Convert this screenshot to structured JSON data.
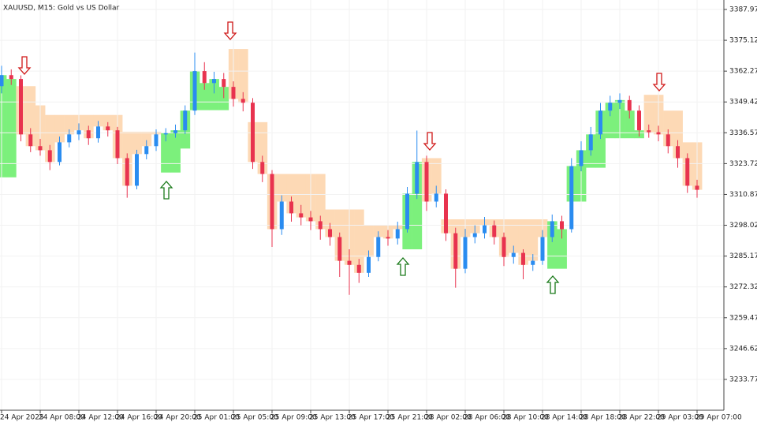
{
  "chart_data": {
    "type": "candlestick",
    "title": "XAUUSD, M15:  Gold vs US Dollar",
    "categories": [
      "24 Apr 2025",
      null,
      null,
      null,
      "24 Apr 08:00",
      null,
      null,
      null,
      "24 Apr 12:00",
      null,
      null,
      null,
      "24 Apr 16:00",
      null,
      null,
      null,
      "24 Apr 20:00",
      null,
      null,
      null,
      "25 Apr 01:00",
      null,
      null,
      null,
      "25 Apr 05:00",
      null,
      null,
      null,
      "25 Apr 09:00",
      null,
      null,
      null,
      "25 Apr 13:00",
      null,
      null,
      null,
      "25 Apr 17:00",
      null,
      null,
      null,
      "25 Apr 21:00",
      null,
      null,
      null,
      "28 Apr 02:00",
      null,
      null,
      null,
      "28 Apr 06:00",
      null,
      null,
      null,
      "28 Apr 10:00",
      null,
      null,
      null,
      "28 Apr 14:00",
      null,
      null,
      null,
      "28 Apr 18:00",
      null,
      null,
      null,
      "28 Apr 22:00",
      null,
      null,
      null,
      "29 Apr 03:00",
      null,
      null,
      null,
      "29 Apr 07:00"
    ],
    "open": [
      3356.0,
      3360.6,
      3359.0,
      3335.9,
      3331.0,
      3329.3,
      3324.4,
      3332.6,
      3335.9,
      3337.6,
      3334.3,
      3339.2,
      3337.6,
      3326.0,
      3314.5,
      3327.7,
      3331.0,
      3335.9,
      3336.4,
      3337.6,
      3345.8,
      3362.3,
      3357.3,
      3359.0,
      3355.7,
      3350.7,
      3349.1,
      3324.4,
      3319.4,
      3296.4,
      3307.9,
      3303.0,
      3301.3,
      3299.7,
      3296.4,
      3293.1,
      3283.2,
      3281.5,
      3278.2,
      3284.8,
      3293.1,
      3292.5,
      3296.4,
      3311.2,
      3324.4,
      3307.9,
      3311.2,
      3294.7,
      3279.9,
      3293.1,
      3294.7,
      3298.0,
      3293.1,
      3284.8,
      3286.5,
      3281.5,
      3283.2,
      3293.1,
      3299.7,
      3296.4,
      3322.7,
      3329.3,
      3335.9,
      3345.8,
      3349.1,
      3350.2,
      3345.8,
      3337.6,
      3336.8,
      3335.9,
      3331.0,
      3326.0,
      3314.5
    ],
    "high": [
      3364.5,
      3363.0,
      3360.5,
      3338.5,
      3334.0,
      3331.5,
      3335.0,
      3338.0,
      3340.5,
      3339.5,
      3341.5,
      3341.0,
      3339.0,
      3328.0,
      3329.5,
      3333.5,
      3338.0,
      3338.5,
      3340.0,
      3348.0,
      3370.0,
      3366.0,
      3362.0,
      3361.5,
      3358.0,
      3353.5,
      3351.0,
      3327.0,
      3321.0,
      3310.5,
      3310.0,
      3306.5,
      3304.0,
      3302.0,
      3299.0,
      3295.0,
      3288.0,
      3284.0,
      3287.5,
      3295.5,
      3296.0,
      3299.5,
      3314.0,
      3337.5,
      3327.0,
      3314.5,
      3313.0,
      3297.0,
      3296.5,
      3298.0,
      3301.5,
      3300.0,
      3295.0,
      3289.5,
      3288.0,
      3286.0,
      3296.0,
      3302.5,
      3302.0,
      3326.0,
      3333.0,
      3339.0,
      3349.0,
      3352.0,
      3353.0,
      3352.0,
      3348.0,
      3340.0,
      3339.5,
      3338.0,
      3333.5,
      3328.0,
      3317.0
    ],
    "low": [
      3353.0,
      3356.5,
      3333.0,
      3328.5,
      3327.0,
      3321.0,
      3323.0,
      3330.5,
      3333.5,
      3331.5,
      3332.5,
      3335.0,
      3323.5,
      3309.5,
      3313.0,
      3325.5,
      3329.0,
      3333.0,
      3334.5,
      3336.0,
      3344.0,
      3354.5,
      3353.0,
      3351.0,
      3347.5,
      3345.5,
      3321.5,
      3316.0,
      3289.0,
      3294.0,
      3299.5,
      3298.0,
      3296.0,
      3292.0,
      3289.5,
      3276.5,
      3269.0,
      3274.0,
      3276.5,
      3283.0,
      3289.5,
      3290.0,
      3295.0,
      3309.0,
      3304.0,
      3305.5,
      3291.5,
      3272.0,
      3278.0,
      3290.5,
      3292.5,
      3290.0,
      3281.0,
      3282.0,
      3275.5,
      3279.0,
      3281.5,
      3291.0,
      3292.5,
      3295.0,
      3320.5,
      3327.0,
      3334.0,
      3343.5,
      3346.5,
      3342.5,
      3335.0,
      3334.5,
      3333.0,
      3328.0,
      3322.0,
      3311.5,
      3309.5
    ],
    "close": [
      3360.6,
      3359.0,
      3335.9,
      3331.0,
      3329.3,
      3324.4,
      3332.6,
      3335.9,
      3337.6,
      3334.3,
      3339.2,
      3337.6,
      3326.0,
      3314.5,
      3327.7,
      3331.0,
      3335.9,
      3336.4,
      3337.6,
      3345.8,
      3362.3,
      3357.3,
      3359.0,
      3355.7,
      3350.7,
      3349.1,
      3324.4,
      3319.4,
      3296.4,
      3307.9,
      3303.0,
      3301.3,
      3299.7,
      3296.4,
      3293.1,
      3283.2,
      3281.5,
      3278.2,
      3284.8,
      3293.1,
      3292.5,
      3296.4,
      3311.2,
      3324.4,
      3307.9,
      3311.2,
      3294.7,
      3279.9,
      3293.1,
      3294.7,
      3298.0,
      3293.1,
      3284.8,
      3286.5,
      3281.5,
      3283.2,
      3293.1,
      3299.7,
      3296.4,
      3322.7,
      3329.3,
      3335.9,
      3345.8,
      3349.1,
      3350.2,
      3345.8,
      3337.6,
      3336.8,
      3335.9,
      3331.0,
      3326.0,
      3314.5,
      3312.8
    ],
    "trail": [
      3318.0,
      3318.0,
      3356.0,
      3356.0,
      3348.0,
      3344.0,
      3344.0,
      3344.0,
      3344.0,
      3344.0,
      3344.0,
      3344.0,
      3344.0,
      3337.0,
      3337.0,
      3337.0,
      3337.0,
      3320.0,
      3320.0,
      3330.0,
      3346.0,
      3346.0,
      3346.0,
      3346.0,
      3371.5,
      3371.5,
      3341.0,
      3341.0,
      3319.4,
      3319.4,
      3319.4,
      3319.4,
      3319.4,
      3319.4,
      3304.6,
      3304.6,
      3304.6,
      3304.6,
      3298.0,
      3298.0,
      3298.0,
      3298.0,
      3288.0,
      3288.0,
      3326.0,
      3326.0,
      3300.5,
      3300.5,
      3300.5,
      3300.5,
      3300.5,
      3300.5,
      3300.5,
      3300.5,
      3300.5,
      3300.5,
      3300.5,
      3279.9,
      3279.9,
      3307.9,
      3307.9,
      3322.0,
      3322.0,
      3334.3,
      3334.3,
      3334.3,
      3334.3,
      3352.4,
      3352.4,
      3345.8,
      3345.8,
      3332.6,
      3332.6
    ],
    "up_color": "#2a8cf0",
    "down_color": "#e8334f",
    "bull_fill": "#7cf07c",
    "bear_fill": "#fdd9b5",
    "ylim": [
      3220.92,
      3391.92
    ],
    "yticks": [
      3387.97,
      3375.12,
      3362.27,
      3349.42,
      3336.57,
      3323.72,
      3310.87,
      3298.02,
      3285.17,
      3272.32,
      3259.47,
      3246.62,
      3233.77
    ],
    "grid": true
  }
}
